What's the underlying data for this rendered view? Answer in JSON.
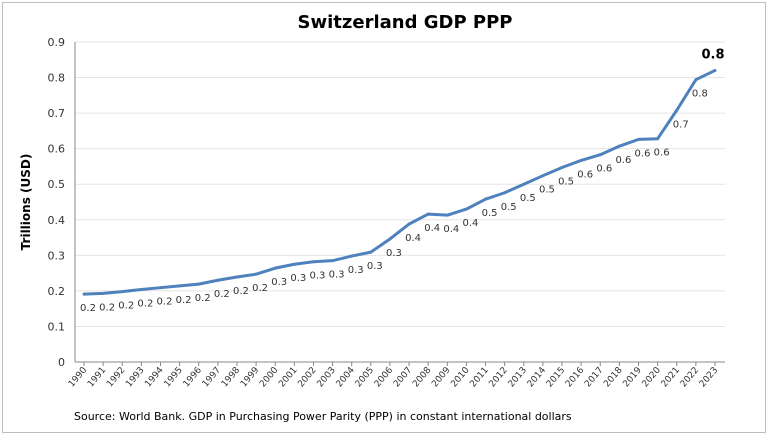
{
  "chart_data": {
    "type": "line",
    "title": "Switzerland GDP PPP",
    "xlabel": "",
    "ylabel": "Trillions (USD)",
    "ylim": [
      0,
      0.9
    ],
    "yticks": [
      "0",
      "0.1",
      "0.2",
      "0.3",
      "0.4",
      "0.5",
      "0.6",
      "0.7",
      "0.8",
      "0.9"
    ],
    "grid": true,
    "legend": "none",
    "color": "#4f81bd",
    "x": [
      "1990",
      "1991",
      "1992",
      "1993",
      "1994",
      "1995",
      "1996",
      "1997",
      "1998",
      "1999",
      "2000",
      "2001",
      "2002",
      "2003",
      "2004",
      "2005",
      "2006",
      "2007",
      "2008",
      "2009",
      "2010",
      "2011",
      "2012",
      "2013",
      "2014",
      "2015",
      "2016",
      "2017",
      "2018",
      "2019",
      "2020",
      "2021",
      "2022",
      "2023"
    ],
    "values": [
      0.191,
      0.193,
      0.198,
      0.204,
      0.209,
      0.214,
      0.219,
      0.23,
      0.239,
      0.247,
      0.264,
      0.275,
      0.282,
      0.285,
      0.298,
      0.309,
      0.346,
      0.388,
      0.416,
      0.413,
      0.43,
      0.458,
      0.476,
      0.5,
      0.524,
      0.547,
      0.567,
      0.583,
      0.607,
      0.626,
      0.628,
      0.708,
      0.794,
      0.82
    ],
    "data_labels": [
      "0.2",
      "0.2",
      "0.2",
      "0.2",
      "0.2",
      "0.2",
      "0.2",
      "0.2",
      "0.2",
      "0.2",
      "0.3",
      "0.3",
      "0.3",
      "0.3",
      "0.3",
      "0.3",
      "0.3",
      "0.4",
      "0.4",
      "0.4",
      "0.4",
      "0.5",
      "0.5",
      "0.5",
      "0.5",
      "0.5",
      "0.6",
      "0.6",
      "0.6",
      "0.6",
      "0.6",
      "0.7",
      "0.8",
      "0.8"
    ],
    "source": "Source: World Bank.  GDP  in  Purchasing Power Parity (PPP)  in constant international dollars"
  }
}
